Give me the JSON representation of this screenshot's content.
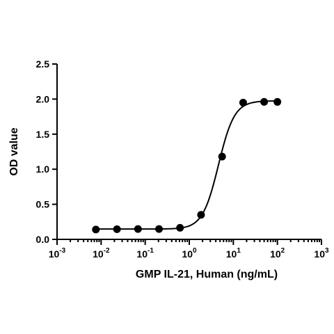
{
  "chart_data": {
    "type": "scatter",
    "title": "",
    "xlabel": "GMP IL-21, Human (ng/mL)",
    "ylabel": "OD value",
    "x_scale": "log10",
    "xlim": [
      0.001,
      1000
    ],
    "ylim": [
      0,
      2.5
    ],
    "grid": false,
    "legend": "none",
    "x_ticks": [
      {
        "value": 0.001,
        "base": "10",
        "exp": "-3"
      },
      {
        "value": 0.01,
        "base": "10",
        "exp": "-2"
      },
      {
        "value": 0.1,
        "base": "10",
        "exp": "-1"
      },
      {
        "value": 1,
        "base": "10",
        "exp": "0"
      },
      {
        "value": 10,
        "base": "10",
        "exp": "1"
      },
      {
        "value": 100,
        "base": "10",
        "exp": "2"
      },
      {
        "value": 1000,
        "base": "10",
        "exp": "3"
      }
    ],
    "y_ticks": [
      {
        "value": 0,
        "label": "0.0"
      },
      {
        "value": 0.5,
        "label": "0.5"
      },
      {
        "value": 1,
        "label": "1.0"
      },
      {
        "value": 1.5,
        "label": "1.5"
      },
      {
        "value": 2,
        "label": "2.0"
      },
      {
        "value": 2.5,
        "label": "2.5"
      }
    ],
    "series": [
      {
        "x": [
          0.0076,
          0.0229,
          0.0686,
          0.206,
          0.617,
          1.85,
          5.56,
          16.7,
          50,
          100
        ],
        "y": [
          0.14,
          0.145,
          0.148,
          0.148,
          0.165,
          0.35,
          1.18,
          1.95,
          1.96,
          1.96
        ],
        "fit": {
          "model": "4PL",
          "bottom": 0.147,
          "top": 1.975,
          "ec50": 4.6,
          "hill": 2.4,
          "x_range": [
            0.0076,
            100
          ]
        }
      }
    ],
    "colors": {
      "axis": "#000000",
      "series": "#000000"
    }
  }
}
